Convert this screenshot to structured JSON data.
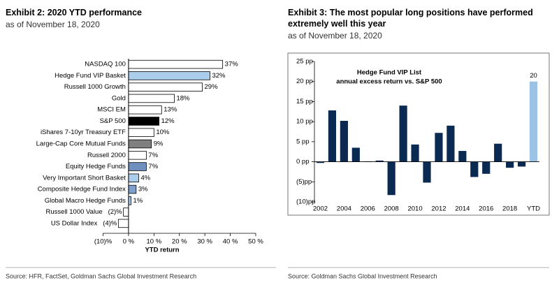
{
  "chart_data": [
    {
      "type": "bar",
      "orientation": "horizontal",
      "title": "Exhibit 2: 2020 YTD performance",
      "subtitle": "as of November 18, 2020",
      "x_label": "YTD return",
      "source": "Source: HFR, FactSet, Goldman Sachs Global Investment Research",
      "categories": [
        "NASDAQ 100",
        "Hedge Fund VIP Basket",
        "Russell 1000 Growth",
        "Gold",
        "MSCI EM",
        "S&P 500",
        "iShares 7-10yr Treasury ETF",
        "Large-Cap Core Mutual Funds",
        "Russell 2000",
        "Equity Hedge Funds",
        "Very Important Short Basket",
        "Composite Hedge Fund Index",
        "Global Macro Hedge Funds",
        "Russell 1000 Value",
        "US Dollar Index"
      ],
      "values": [
        37,
        32,
        29,
        18,
        13,
        12,
        10,
        9,
        7,
        7,
        4,
        3,
        1,
        -2,
        -4
      ],
      "value_labels": [
        "37%",
        "32%",
        "29%",
        "18%",
        "13%",
        "12%",
        "10%",
        "9%",
        "7%",
        "7%",
        "4%",
        "3%",
        "1%",
        "(2)%",
        "(4)%"
      ],
      "colors": [
        "#ffffff",
        "#a9cdeb",
        "#ffffff",
        "#ffffff",
        "#ffffff",
        "#000000",
        "#ffffff",
        "#7f7f7f",
        "#ffffff",
        "#6f8fbf",
        "#a9cdeb",
        "#7f9fcf",
        "#a9cdeb",
        "#ffffff",
        "#ffffff"
      ],
      "xlim": [
        -10,
        50
      ],
      "xticks": [
        {
          "value": -10,
          "label": "(10)%"
        },
        {
          "value": 0,
          "label": "0 %"
        },
        {
          "value": 10,
          "label": "10 %"
        },
        {
          "value": 20,
          "label": "20 %"
        },
        {
          "value": 30,
          "label": "30 %"
        },
        {
          "value": 40,
          "label": "40 %"
        },
        {
          "value": 50,
          "label": "50 %"
        }
      ]
    },
    {
      "type": "bar",
      "title": "Exhibit 3: The most popular long positions have performed extremely well this year",
      "subtitle": "as of November 18, 2020",
      "inner_title": [
        "Hedge Fund VIP List",
        "annual excess return vs. S&P 500"
      ],
      "source": "Source: Goldman Sachs Global Investment Research",
      "categories": [
        "2002",
        null,
        "2004",
        null,
        "2006",
        null,
        "2008",
        null,
        "2010",
        null,
        "2012",
        null,
        "2014",
        null,
        "2016",
        null,
        "2018",
        null,
        "YTD"
      ],
      "values": [
        -0.3,
        12.8,
        10.2,
        3.5,
        0.1,
        0.3,
        -8.3,
        14,
        4.3,
        -5.2,
        7.2,
        9,
        2.7,
        -3.8,
        -3,
        4.5,
        -1.5,
        -1.2,
        20
      ],
      "value_labels": [
        null,
        null,
        null,
        null,
        null,
        null,
        null,
        null,
        null,
        null,
        null,
        null,
        null,
        null,
        null,
        null,
        null,
        null,
        "20"
      ],
      "colors": [
        "#0b2a52",
        "#0b2a52",
        "#0b2a52",
        "#0b2a52",
        "#0b2a52",
        "#0b2a52",
        "#0b2a52",
        "#0b2a52",
        "#0b2a52",
        "#0b2a52",
        "#0b2a52",
        "#0b2a52",
        "#0b2a52",
        "#0b2a52",
        "#0b2a52",
        "#0b2a52",
        "#0b2a52",
        "#0b2a52",
        "#9cc3e6"
      ],
      "ylim": [
        -10,
        25
      ],
      "yticks": [
        {
          "value": -10,
          "label": "(10)pp"
        },
        {
          "value": -5,
          "label": "(5)pp"
        },
        {
          "value": 0,
          "label": "0 pp"
        },
        {
          "value": 5,
          "label": "5 pp"
        },
        {
          "value": 10,
          "label": "10 pp"
        },
        {
          "value": 15,
          "label": "15 pp"
        },
        {
          "value": 20,
          "label": "20 pp"
        },
        {
          "value": 25,
          "label": "25 pp"
        }
      ]
    }
  ]
}
